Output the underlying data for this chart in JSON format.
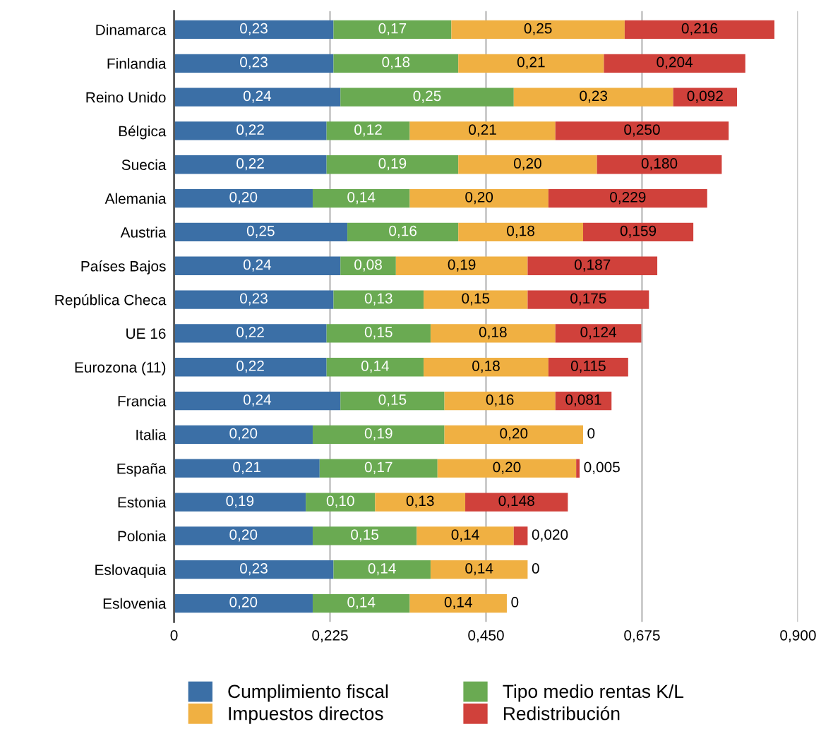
{
  "chart_data": {
    "type": "bar",
    "orientation": "horizontal",
    "stacked": true,
    "categories": [
      "Dinamarca",
      "Finlandia",
      "Reino Unido",
      "Bélgica",
      "Suecia",
      "Alemania",
      "Austria",
      "Países Bajos",
      "República Checa",
      "UE 16",
      "Eurozona (11)",
      "Francia",
      "Italia",
      "España",
      "Estonia",
      "Polonia",
      "Eslovaquia",
      "Eslovenia"
    ],
    "series": [
      {
        "name": "Cumplimiento fiscal",
        "color": "#3b6fa6",
        "values": [
          0.23,
          0.23,
          0.24,
          0.22,
          0.22,
          0.2,
          0.25,
          0.24,
          0.23,
          0.22,
          0.22,
          0.24,
          0.2,
          0.21,
          0.19,
          0.2,
          0.23,
          0.2
        ],
        "value_labels": [
          "0,23",
          "0,23",
          "0,24",
          "0,22",
          "0,22",
          "0,20",
          "0,25",
          "0,24",
          "0,23",
          "0,22",
          "0,22",
          "0,24",
          "0,20",
          "0,21",
          "0,19",
          "0,20",
          "0,23",
          "0,20"
        ]
      },
      {
        "name": "Tipo medio rentas K/L",
        "color": "#6aaa52",
        "values": [
          0.17,
          0.18,
          0.25,
          0.12,
          0.19,
          0.14,
          0.16,
          0.08,
          0.13,
          0.15,
          0.14,
          0.15,
          0.19,
          0.17,
          0.1,
          0.15,
          0.14,
          0.14
        ],
        "value_labels": [
          "0,17",
          "0,18",
          "0,25",
          "0,12",
          "0,19",
          "0,14",
          "0,16",
          "0,08",
          "0,13",
          "0,15",
          "0,14",
          "0,15",
          "0,19",
          "0,17",
          "0,10",
          "0,15",
          "0,14",
          "0,14"
        ]
      },
      {
        "name": "Impuestos directos",
        "color": "#f0b042",
        "values": [
          0.25,
          0.21,
          0.23,
          0.21,
          0.2,
          0.2,
          0.18,
          0.19,
          0.15,
          0.18,
          0.18,
          0.16,
          0.2,
          0.2,
          0.13,
          0.14,
          0.14,
          0.14
        ],
        "value_labels": [
          "0,25",
          "0,21",
          "0,23",
          "0,21",
          "0,20",
          "0,20",
          "0,18",
          "0,19",
          "0,15",
          "0,18",
          "0,18",
          "0,16",
          "0,20",
          "0,20",
          "0,13",
          "0,14",
          "0,14",
          "0,14"
        ]
      },
      {
        "name": "Redistribución",
        "color": "#d0413b",
        "values": [
          0.216,
          0.204,
          0.092,
          0.25,
          0.18,
          0.229,
          0.159,
          0.187,
          0.175,
          0.124,
          0.115,
          0.081,
          0,
          0.005,
          0.148,
          0.02,
          0,
          0
        ],
        "value_labels": [
          "0,216",
          "0,204",
          "0,092",
          "0,250",
          "0,180",
          "0,229",
          "0,159",
          "0,187",
          "0,175",
          "0,124",
          "0,115",
          "0,081",
          "0",
          "0,005",
          "0,148",
          "0,020",
          "0",
          "0"
        ]
      }
    ],
    "xlim": [
      0,
      0.9
    ],
    "xticks": [
      0,
      {
        "value": 0.225,
        "label": "0,225"
      },
      {
        "value": 0.45,
        "label": "0,450"
      },
      {
        "value": 0.675,
        "label": "0,675"
      },
      {
        "value": 0.9,
        "label": "0,900"
      }
    ],
    "grid": "x",
    "legend": "bottom"
  }
}
